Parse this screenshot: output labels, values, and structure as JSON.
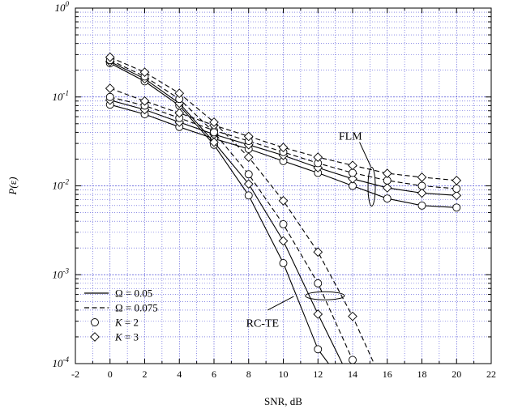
{
  "chart_data": {
    "type": "line",
    "title": "",
    "xlabel": "SNR, dB",
    "ylabel": "P(ε)",
    "ylabel_main": "P(",
    "ylabel_sym": "ε",
    "ylabel_close": ")",
    "xlim": [
      -2,
      22
    ],
    "ylim": [
      0.0001,
      1
    ],
    "yscale": "log",
    "grid": true,
    "x_ticks": [
      -2,
      0,
      2,
      4,
      6,
      8,
      10,
      12,
      14,
      16,
      18,
      20,
      22
    ],
    "y_ticks": [
      {
        "value": 1,
        "base": "10",
        "exp": "0"
      },
      {
        "value": 0.1,
        "base": "10",
        "exp": "-1"
      },
      {
        "value": 0.01,
        "base": "10",
        "exp": "-2"
      },
      {
        "value": 0.001,
        "base": "10",
        "exp": "-3"
      },
      {
        "value": 0.0001,
        "base": "10",
        "exp": "-4"
      }
    ],
    "series": [
      {
        "style": "solid",
        "marker": "circle",
        "x": [
          0,
          2,
          4,
          6,
          8,
          10,
          12,
          14,
          16,
          18,
          20
        ],
        "y": [
          0.082,
          0.064,
          0.046,
          0.034,
          0.026,
          0.019,
          0.014,
          0.01,
          0.0072,
          0.006,
          0.0057
        ]
      },
      {
        "style": "solid",
        "marker": "diamond",
        "x": [
          0,
          2,
          4,
          6,
          8,
          10,
          12,
          14,
          16,
          18,
          20
        ],
        "y": [
          0.092,
          0.072,
          0.052,
          0.038,
          0.029,
          0.022,
          0.016,
          0.012,
          0.0095,
          0.0083,
          0.0078
        ]
      },
      {
        "style": "dashed",
        "marker": "circle",
        "x": [
          0,
          2,
          4,
          6,
          8,
          10,
          12,
          14,
          16,
          18,
          20
        ],
        "y": [
          0.1,
          0.08,
          0.058,
          0.042,
          0.032,
          0.024,
          0.018,
          0.014,
          0.0115,
          0.01,
          0.0093
        ]
      },
      {
        "style": "dashed",
        "marker": "diamond",
        "x": [
          0,
          2,
          4,
          6,
          8,
          10,
          12,
          14,
          16,
          18,
          20
        ],
        "y": [
          0.125,
          0.09,
          0.066,
          0.048,
          0.036,
          0.027,
          0.021,
          0.017,
          0.0138,
          0.0125,
          0.0115
        ]
      },
      {
        "style": "solid",
        "marker": "circle",
        "x": [
          0,
          2,
          4,
          6,
          8,
          10,
          12,
          13.2
        ],
        "y": [
          0.24,
          0.15,
          0.08,
          0.029,
          0.0078,
          0.00135,
          0.000145,
          7e-05
        ]
      },
      {
        "style": "solid",
        "marker": "diamond",
        "x": [
          0,
          2,
          4,
          6,
          8,
          10,
          12,
          13.8
        ],
        "y": [
          0.25,
          0.16,
          0.085,
          0.031,
          0.0105,
          0.0024,
          0.00036,
          7e-05
        ]
      },
      {
        "style": "dashed",
        "marker": "circle",
        "x": [
          0,
          2,
          4,
          6,
          8,
          10,
          12,
          14,
          14.8
        ],
        "y": [
          0.26,
          0.17,
          0.095,
          0.04,
          0.0135,
          0.0037,
          0.0008,
          0.00011,
          7e-05
        ]
      },
      {
        "style": "dashed",
        "marker": "diamond",
        "x": [
          0,
          2,
          4,
          6,
          8,
          10,
          12,
          14,
          15.6
        ],
        "y": [
          0.28,
          0.19,
          0.11,
          0.052,
          0.021,
          0.0068,
          0.0018,
          0.00034,
          7e-05
        ]
      }
    ],
    "legend": {
      "placement": "bottom-left",
      "entries": [
        {
          "kind": "solid",
          "pre": "Ω",
          "text": " = 0.05"
        },
        {
          "kind": "dashed",
          "pre": "Ω",
          "text": " = 0.075"
        },
        {
          "kind": "circle",
          "pre": "K",
          "text": " = 2"
        },
        {
          "kind": "diamond",
          "pre": "K",
          "text": " = 3"
        }
      ]
    },
    "annotations": [
      {
        "text": "FLM",
        "x": 15.2,
        "y": 0.042
      },
      {
        "text": "RC-TE",
        "x": 9.5,
        "y": 0.00042
      }
    ]
  }
}
